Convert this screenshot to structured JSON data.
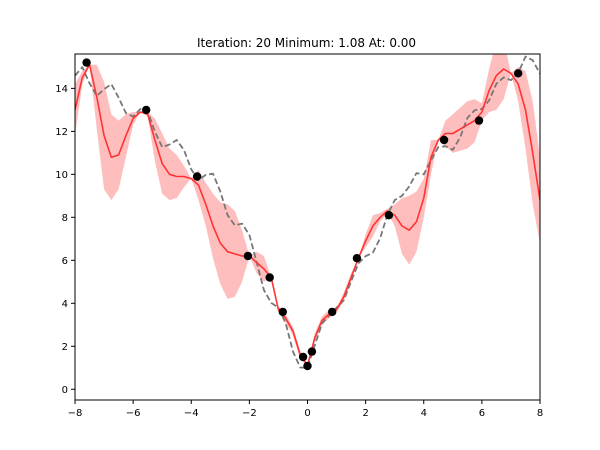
{
  "chart_data": {
    "type": "line",
    "title": "Iteration: 20   Minimum: 1.08   At: 0.00",
    "xlabel": "",
    "ylabel": "",
    "xlim": [
      -8,
      8
    ],
    "ylim": [
      -0.5,
      15.6
    ],
    "xticks": [
      -8,
      -6,
      -4,
      -2,
      0,
      2,
      4,
      6,
      8
    ],
    "yticks": [
      0,
      2,
      4,
      6,
      8,
      10,
      12,
      14
    ],
    "xtick_labels": [
      "−8",
      "−6",
      "−4",
      "−2",
      "0",
      "2",
      "4",
      "6",
      "8"
    ],
    "ytick_labels": [
      "0",
      "2",
      "4",
      "6",
      "8",
      "10",
      "12",
      "14"
    ],
    "grid": false,
    "colors": {
      "mean": "#ff3333",
      "band": "#ffb3b3",
      "true_function": "#777777",
      "points": "#000000"
    },
    "series": [
      {
        "role": "true_function",
        "style": "dashed",
        "x": [
          -8.0,
          -7.75,
          -7.5,
          -7.25,
          -7.0,
          -6.75,
          -6.5,
          -6.25,
          -6.0,
          -5.75,
          -5.5,
          -5.25,
          -5.0,
          -4.75,
          -4.5,
          -4.25,
          -4.0,
          -3.75,
          -3.5,
          -3.25,
          -3.0,
          -2.75,
          -2.5,
          -2.25,
          -2.0,
          -1.75,
          -1.5,
          -1.25,
          -1.0,
          -0.75,
          -0.5,
          -0.25,
          0.0,
          0.25,
          0.5,
          0.75,
          1.0,
          1.25,
          1.5,
          1.75,
          2.0,
          2.25,
          2.5,
          2.75,
          3.0,
          3.25,
          3.5,
          3.75,
          4.0,
          4.25,
          4.5,
          4.75,
          5.0,
          5.25,
          5.5,
          5.75,
          6.0,
          6.25,
          6.5,
          6.75,
          7.0,
          7.25,
          7.5,
          7.75,
          8.0
        ],
        "y": [
          14.59,
          14.99,
          14.24,
          13.65,
          13.96,
          14.2,
          13.57,
          12.85,
          12.69,
          13.04,
          12.91,
          11.99,
          11.27,
          11.39,
          11.6,
          11.13,
          10.23,
          9.73,
          9.98,
          10.03,
          9.2,
          8.1,
          7.63,
          7.71,
          7.18,
          5.92,
          4.62,
          4.02,
          3.8,
          3.07,
          1.75,
          1.01,
          1.0,
          2.05,
          3.06,
          3.44,
          3.8,
          4.14,
          5.02,
          5.86,
          6.19,
          6.36,
          7.04,
          8.12,
          8.8,
          9.0,
          9.44,
          10.06,
          10.0,
          10.66,
          11.27,
          11.31,
          11.14,
          11.71,
          12.62,
          12.98,
          13.04,
          13.44,
          14.22,
          14.51,
          14.38,
          14.72,
          15.48,
          15.31,
          14.68
        ]
      },
      {
        "role": "gp_mean",
        "style": "solid",
        "x": [
          -8.0,
          -7.75,
          -7.5,
          -7.25,
          -7.0,
          -6.75,
          -6.5,
          -6.25,
          -6.0,
          -5.75,
          -5.5,
          -5.25,
          -5.0,
          -4.75,
          -4.5,
          -4.25,
          -4.0,
          -3.75,
          -3.5,
          -3.25,
          -3.0,
          -2.75,
          -2.5,
          -2.25,
          -2.0,
          -1.75,
          -1.5,
          -1.25,
          -1.0,
          -0.75,
          -0.5,
          -0.25,
          0.0,
          0.25,
          0.5,
          0.75,
          1.0,
          1.25,
          1.5,
          1.75,
          2.0,
          2.25,
          2.5,
          2.75,
          3.0,
          3.25,
          3.5,
          3.75,
          4.0,
          4.25,
          4.5,
          4.75,
          5.0,
          5.25,
          5.5,
          5.75,
          6.0,
          6.25,
          6.5,
          6.75,
          7.0,
          7.25,
          7.5,
          7.75,
          8.0
        ],
        "y": [
          13.0,
          14.5,
          15.1,
          13.6,
          11.8,
          10.8,
          10.9,
          11.8,
          12.6,
          12.9,
          12.8,
          11.6,
          10.5,
          10.0,
          9.9,
          9.9,
          9.8,
          9.5,
          8.6,
          7.6,
          6.8,
          6.4,
          6.3,
          6.2,
          6.2,
          5.9,
          5.6,
          5.2,
          3.7,
          3.3,
          2.7,
          1.6,
          1.1,
          2.4,
          3.2,
          3.5,
          3.7,
          4.3,
          5.2,
          6.1,
          6.9,
          7.6,
          8.0,
          8.3,
          8.1,
          7.6,
          7.4,
          7.8,
          8.9,
          10.8,
          11.6,
          11.9,
          11.9,
          12.1,
          12.3,
          12.5,
          12.9,
          13.9,
          14.6,
          14.9,
          14.7,
          14.2,
          13.0,
          11.0,
          8.8
        ]
      }
    ],
    "band": {
      "role": "confidence_interval",
      "x": [
        -8.0,
        -7.75,
        -7.5,
        -7.25,
        -7.0,
        -6.75,
        -6.5,
        -6.25,
        -6.0,
        -5.75,
        -5.5,
        -5.25,
        -5.0,
        -4.75,
        -4.5,
        -4.25,
        -4.0,
        -3.75,
        -3.5,
        -3.25,
        -3.0,
        -2.75,
        -2.5,
        -2.25,
        -2.0,
        -1.75,
        -1.5,
        -1.25,
        -1.0,
        -0.75,
        -0.5,
        -0.25,
        0.0,
        0.25,
        0.5,
        0.75,
        1.0,
        1.25,
        1.5,
        1.75,
        2.0,
        2.25,
        2.5,
        2.75,
        3.0,
        3.25,
        3.5,
        3.75,
        4.0,
        4.25,
        4.5,
        4.75,
        5.0,
        5.25,
        5.5,
        5.75,
        6.0,
        6.25,
        6.5,
        6.75,
        7.0,
        7.25,
        7.5,
        7.75,
        8.0
      ],
      "lower": [
        11.8,
        14.2,
        15.1,
        12.1,
        9.3,
        8.8,
        9.3,
        10.8,
        12.3,
        12.9,
        12.7,
        10.6,
        9.1,
        8.8,
        8.9,
        9.4,
        9.8,
        8.8,
        7.6,
        6.1,
        4.9,
        4.2,
        4.3,
        5.0,
        6.2,
        5.4,
        5.0,
        5.2,
        3.6,
        3.1,
        2.5,
        1.4,
        1.1,
        2.2,
        3.0,
        3.3,
        3.6,
        4.1,
        5.0,
        6.1,
        6.6,
        7.1,
        7.8,
        8.2,
        7.6,
        6.3,
        5.8,
        6.4,
        8.0,
        10.0,
        11.6,
        11.3,
        11.0,
        11.1,
        11.2,
        11.5,
        12.5,
        12.9,
        13.0,
        13.5,
        14.7,
        13.4,
        11.2,
        8.6,
        6.8
      ],
      "upper": [
        14.2,
        14.8,
        15.1,
        15.1,
        14.3,
        12.8,
        12.5,
        12.8,
        12.9,
        12.9,
        12.9,
        12.6,
        11.9,
        11.2,
        10.9,
        10.4,
        9.8,
        10.2,
        9.6,
        9.1,
        8.7,
        8.6,
        8.3,
        7.4,
        6.2,
        6.4,
        6.2,
        5.2,
        3.8,
        3.5,
        2.9,
        1.8,
        1.1,
        2.6,
        3.4,
        3.7,
        3.8,
        4.5,
        5.4,
        6.1,
        7.2,
        8.1,
        8.2,
        8.4,
        8.6,
        8.9,
        9.0,
        9.2,
        9.8,
        11.6,
        11.6,
        12.5,
        12.8,
        13.1,
        13.4,
        13.5,
        13.3,
        14.9,
        16.2,
        16.3,
        14.7,
        15.0,
        14.8,
        13.4,
        10.8
      ]
    },
    "points": {
      "x": [
        -7.6,
        -5.55,
        -3.8,
        -2.05,
        -1.3,
        -0.85,
        -0.15,
        0.0,
        0.15,
        0.85,
        1.7,
        2.8,
        4.7,
        5.9,
        7.25
      ],
      "y": [
        15.2,
        13.0,
        9.9,
        6.2,
        5.2,
        3.6,
        1.5,
        1.08,
        1.75,
        3.6,
        6.1,
        8.1,
        11.6,
        12.5,
        14.7
      ]
    }
  }
}
